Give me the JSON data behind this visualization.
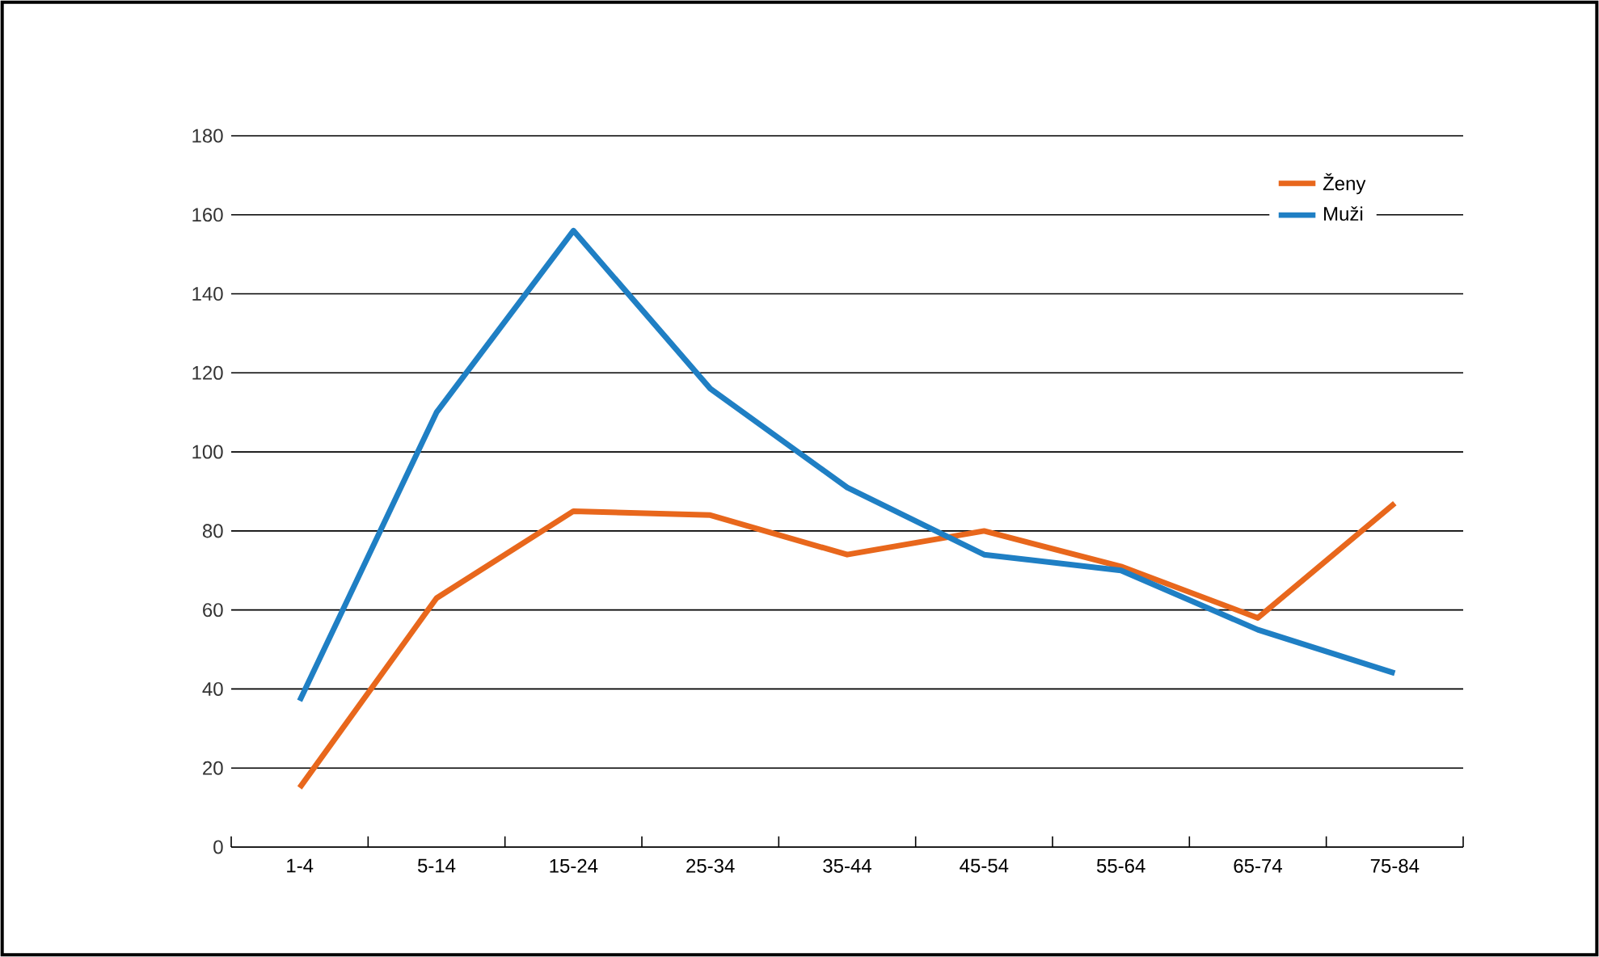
{
  "chart_data": {
    "type": "line",
    "categories": [
      "1-4",
      "5-14",
      "15-24",
      "25-34",
      "35-44",
      "45-54",
      "55-64",
      "65-74",
      "75-84"
    ],
    "series": [
      {
        "name": "Ženy",
        "color": "#e8671c",
        "values": [
          15,
          63,
          85,
          84,
          74,
          80,
          71,
          58,
          87
        ]
      },
      {
        "name": "Muži",
        "color": "#1f7fc4",
        "values": [
          37,
          110,
          156,
          116,
          91,
          74,
          70,
          55,
          44
        ]
      }
    ],
    "ylim": [
      0,
      180
    ],
    "yticks": [
      0,
      20,
      40,
      60,
      80,
      100,
      120,
      140,
      160,
      180
    ],
    "grid": "y",
    "legend": "top right",
    "marker": "none",
    "line_style": "solid"
  }
}
